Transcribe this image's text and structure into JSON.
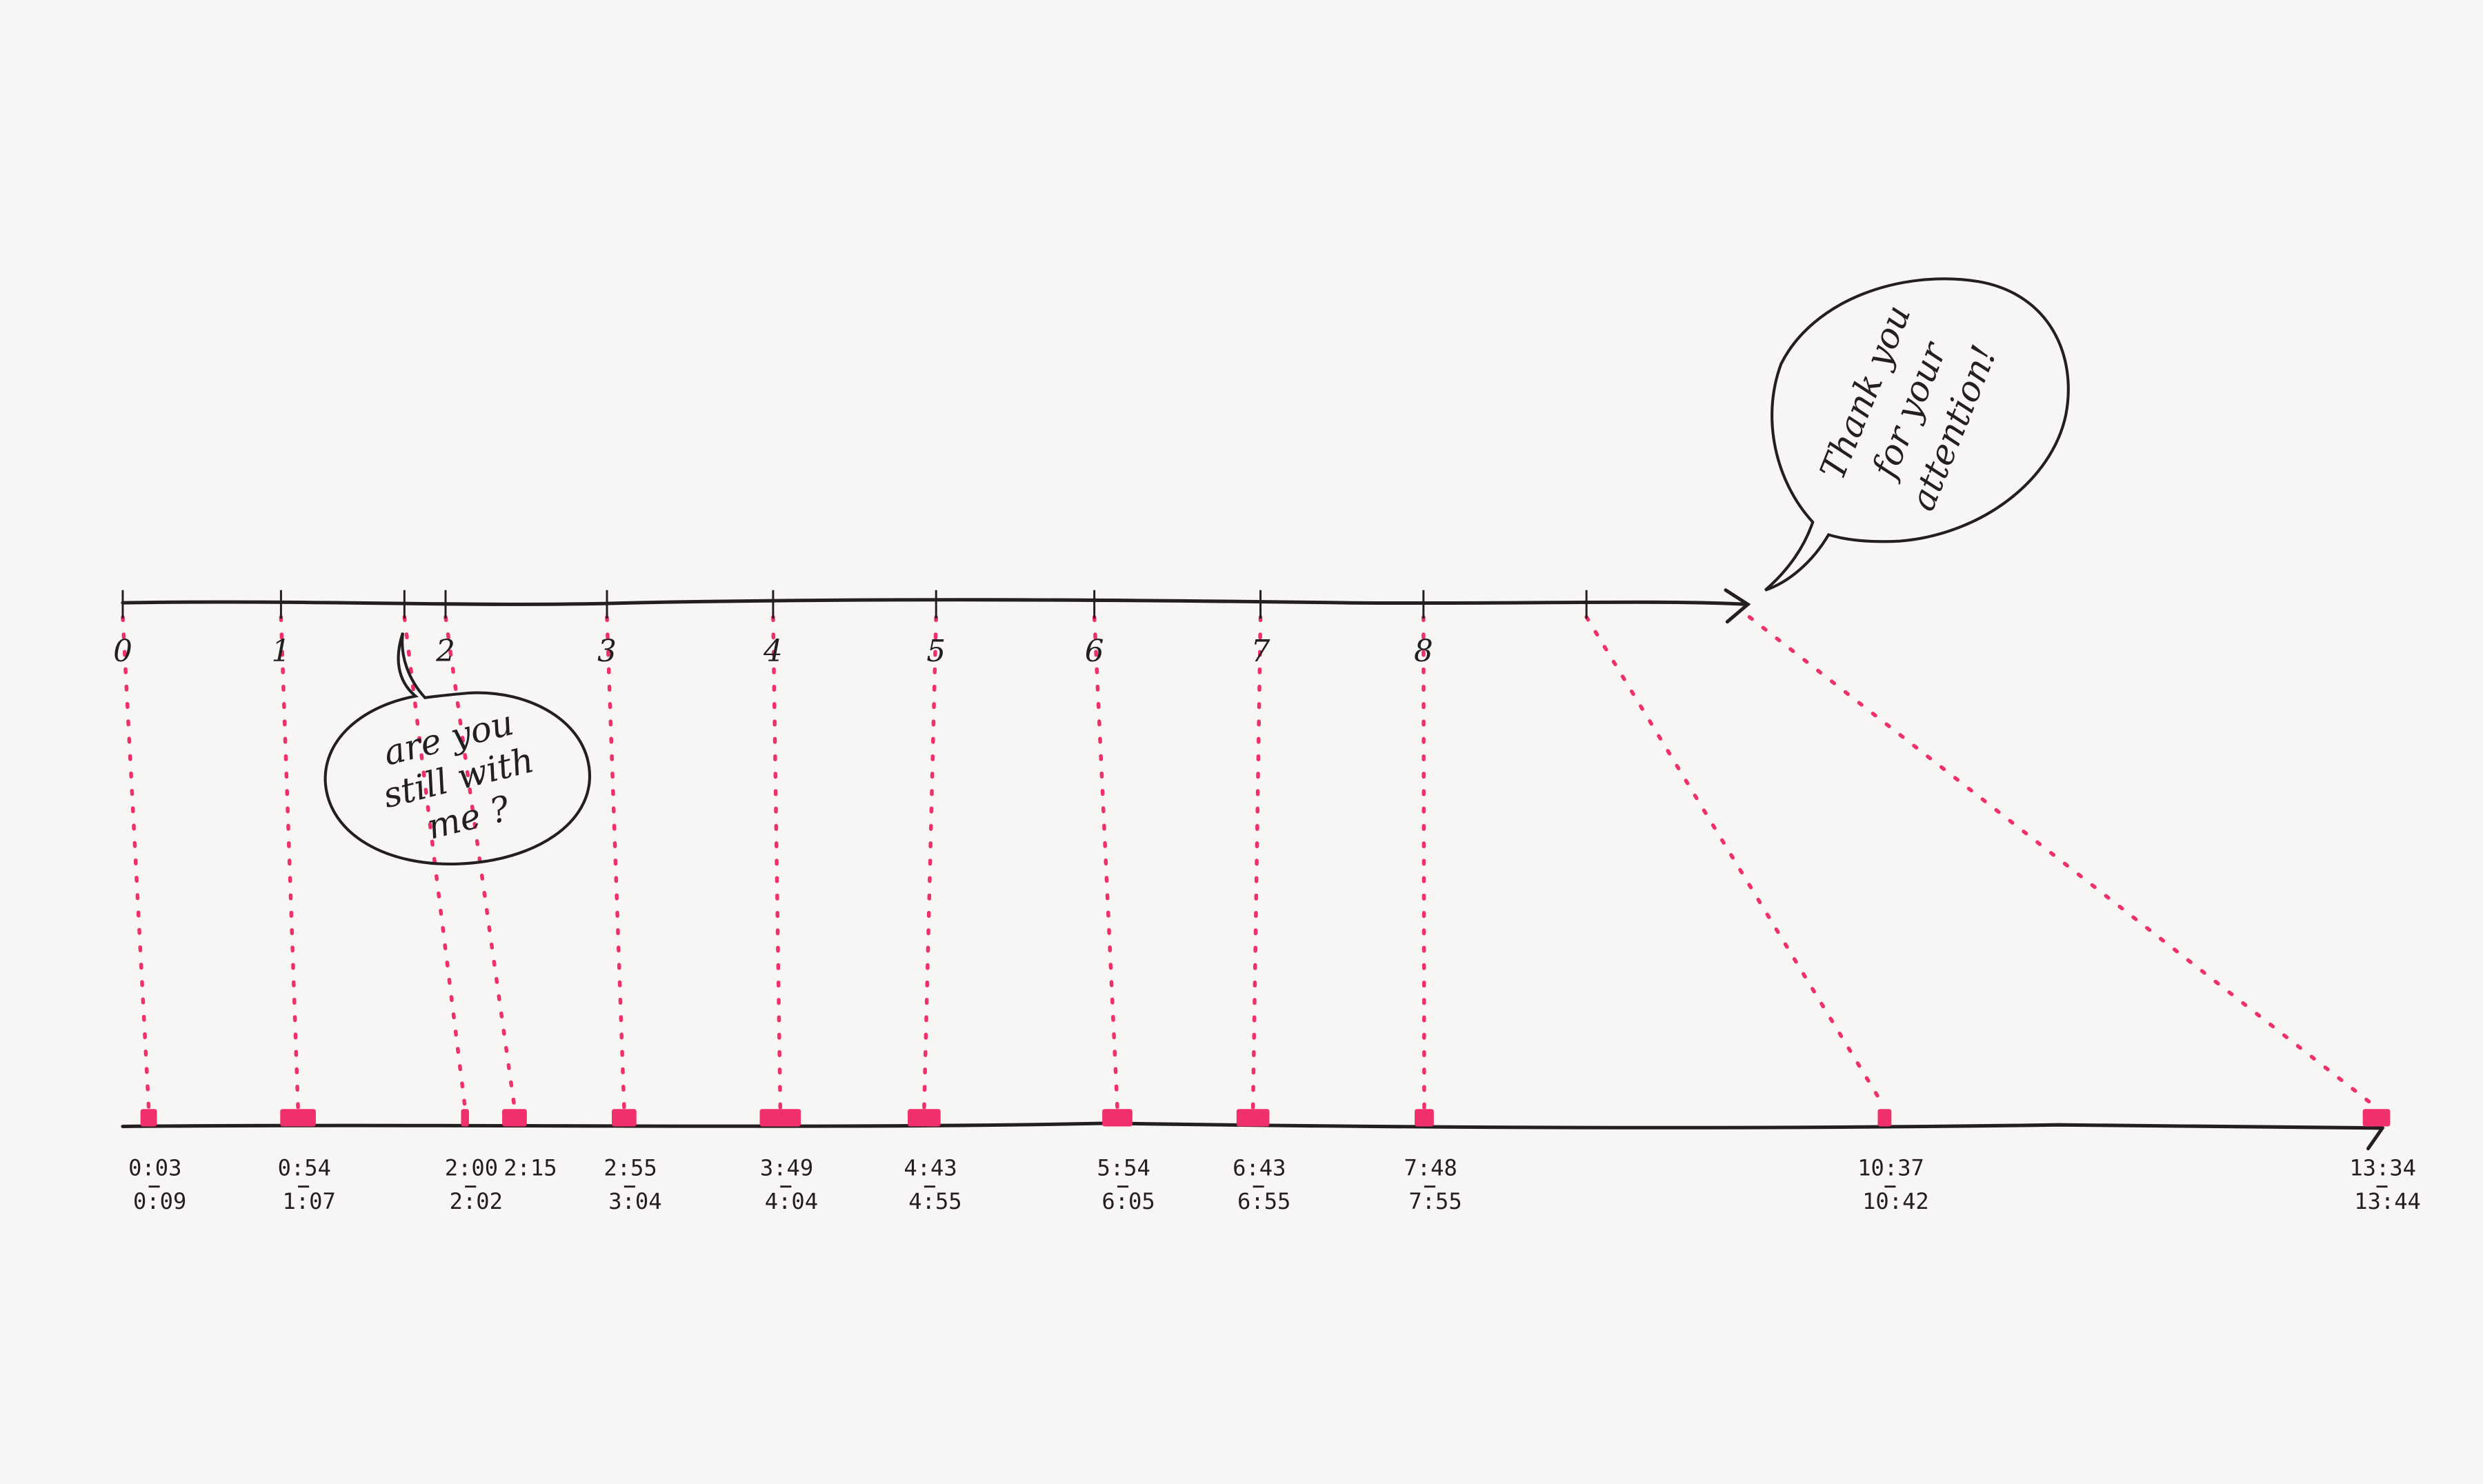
{
  "colors": {
    "ink": "#231f20",
    "highlight": "#f0306a",
    "paper": "#f7f6f4"
  },
  "top_axis": {
    "ticks": [
      "0",
      "1",
      "",
      "2",
      "3",
      "4",
      "5",
      "6",
      "7",
      "8",
      ""
    ]
  },
  "bottom_axis": {
    "segments": [
      {
        "start": "0:03",
        "end": "0:09"
      },
      {
        "start": "0:54",
        "end": "1:07"
      },
      {
        "start": "2:00",
        "end": "2:02"
      },
      {
        "start": "2:15",
        "end": ""
      },
      {
        "start": "2:55",
        "end": "3:04"
      },
      {
        "start": "3:49",
        "end": "4:04"
      },
      {
        "start": "4:43",
        "end": "4:55"
      },
      {
        "start": "5:54",
        "end": "6:05"
      },
      {
        "start": "6:43",
        "end": "6:55"
      },
      {
        "start": "7:48",
        "end": "7:55"
      },
      {
        "start": "10:37",
        "end": "10:42"
      },
      {
        "start": "13:34",
        "end": "13:44"
      }
    ]
  },
  "bubbles": {
    "still_with_me": [
      "are you",
      "still with",
      "me ?"
    ],
    "thank_you": [
      "Thank you",
      "for your",
      "attention!"
    ]
  }
}
